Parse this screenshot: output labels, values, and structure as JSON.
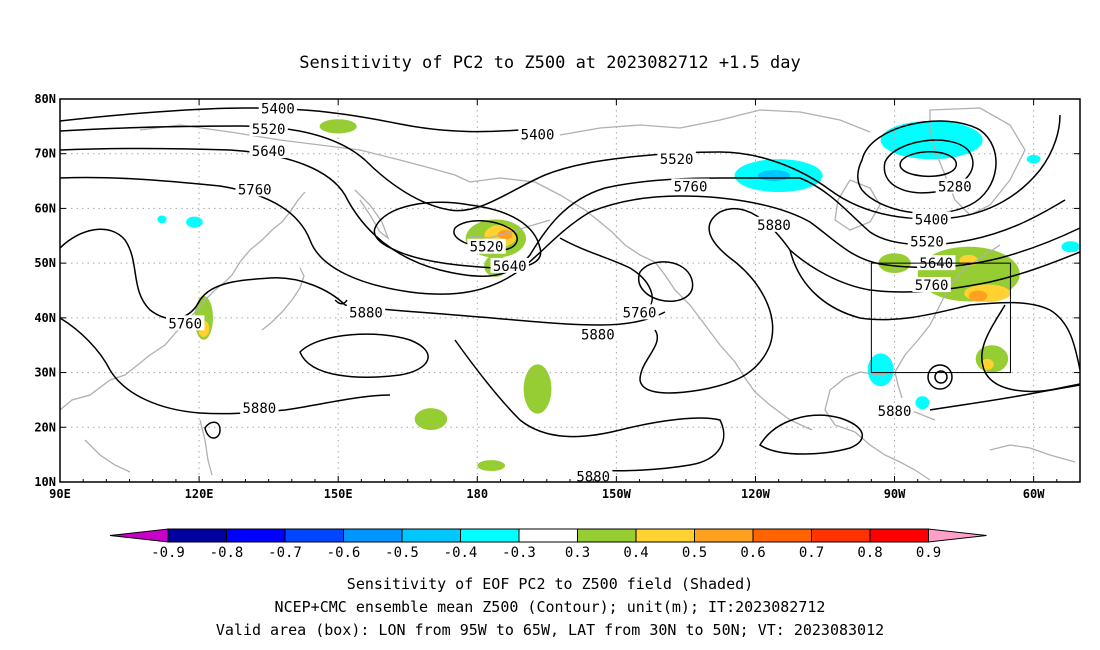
{
  "chart_data": {
    "type": "heatmap",
    "title": "Sensitivity of PC2 to Z500 at 2023082712 +1.5 day",
    "map": {
      "lon_range": [
        90,
        310
      ],
      "lat_range": [
        10,
        80
      ],
      "x_ticks": [
        {
          "lon": 90,
          "label": "90E"
        },
        {
          "lon": 120,
          "label": "120E"
        },
        {
          "lon": 150,
          "label": "150E"
        },
        {
          "lon": 180,
          "label": "180"
        },
        {
          "lon": 210,
          "label": "150W"
        },
        {
          "lon": 240,
          "label": "120W"
        },
        {
          "lon": 270,
          "label": "90W"
        },
        {
          "lon": 300,
          "label": "60W"
        }
      ],
      "y_ticks": [
        {
          "lat": 10,
          "label": "10N"
        },
        {
          "lat": 20,
          "label": "20N"
        },
        {
          "lat": 30,
          "label": "30N"
        },
        {
          "lat": 40,
          "label": "40N"
        },
        {
          "lat": 50,
          "label": "50N"
        },
        {
          "lat": 60,
          "label": "60N"
        },
        {
          "lat": 70,
          "label": "70N"
        },
        {
          "lat": 80,
          "label": "80N"
        }
      ],
      "gridlines": "dotted",
      "valid_box": {
        "lon": [
          265,
          295
        ],
        "lat": [
          30,
          50
        ]
      }
    },
    "contours": {
      "unit": "m",
      "labels": [
        {
          "value": "5400",
          "lon": 137,
          "lat": 78.3
        },
        {
          "value": "5520",
          "lon": 135,
          "lat": 74.5
        },
        {
          "value": "5640",
          "lon": 135,
          "lat": 70.5
        },
        {
          "value": "5760",
          "lon": 132,
          "lat": 63.5
        },
        {
          "value": "5760",
          "lon": 117,
          "lat": 39.0
        },
        {
          "value": "5880",
          "lon": 133,
          "lat": 23.5
        },
        {
          "value": "5880",
          "lon": 156,
          "lat": 41.0
        },
        {
          "value": "5400",
          "lon": 193,
          "lat": 73.5
        },
        {
          "value": "5520",
          "lon": 182,
          "lat": 53.0
        },
        {
          "value": "5640",
          "lon": 187,
          "lat": 49.5
        },
        {
          "value": "5520",
          "lon": 223,
          "lat": 69.0
        },
        {
          "value": "5760",
          "lon": 226,
          "lat": 64.0
        },
        {
          "value": "5880",
          "lon": 244,
          "lat": 57.0
        },
        {
          "value": "5760",
          "lon": 215,
          "lat": 41.0
        },
        {
          "value": "5880",
          "lon": 206,
          "lat": 37.0
        },
        {
          "value": "5880",
          "lon": 205,
          "lat": 11.0
        },
        {
          "value": "5280",
          "lon": 283,
          "lat": 64.0
        },
        {
          "value": "5400",
          "lon": 278,
          "lat": 58.0
        },
        {
          "value": "5520",
          "lon": 277,
          "lat": 54.0
        },
        {
          "value": "5640",
          "lon": 279,
          "lat": 50.0
        },
        {
          "value": "5760",
          "lon": 278,
          "lat": 46.0
        },
        {
          "value": "5880",
          "lon": 270,
          "lat": 23.0
        }
      ]
    },
    "shaded_regions": [
      {
        "level": 0.3,
        "lon": 150,
        "lat": 75.0,
        "rx": 4.0,
        "ry": 1.3
      },
      {
        "level": 0.3,
        "lon": 184,
        "lat": 54.5,
        "rx": 6.5,
        "ry": 3.5
      },
      {
        "level": 0.4,
        "lon": 185,
        "lat": 55.0,
        "rx": 3.5,
        "ry": 2.0
      },
      {
        "level": 0.5,
        "lon": 186,
        "lat": 55.2,
        "rx": 1.6,
        "ry": 0.9
      },
      {
        "level": 0.3,
        "lon": 184,
        "lat": 49.5,
        "rx": 2.5,
        "ry": 2.0
      },
      {
        "level": 0.3,
        "lon": 121,
        "lat": 40.0,
        "rx": 2.0,
        "ry": 4.0
      },
      {
        "level": 0.4,
        "lon": 121,
        "lat": 38.0,
        "rx": 1.2,
        "ry": 1.5
      },
      {
        "level": 0.3,
        "lon": 170,
        "lat": 21.5,
        "rx": 3.5,
        "ry": 2.0
      },
      {
        "level": 0.3,
        "lon": 193,
        "lat": 27.0,
        "rx": 3.0,
        "ry": 4.5
      },
      {
        "level": 0.3,
        "lon": 183,
        "lat": 13.0,
        "rx": 3.0,
        "ry": 1.0
      },
      {
        "level": -0.4,
        "lon": 278,
        "lat": 72.5,
        "rx": 11.0,
        "ry": 3.5
      },
      {
        "level": -0.4,
        "lon": 245,
        "lat": 66.0,
        "rx": 9.5,
        "ry": 3.0
      },
      {
        "level": -0.5,
        "lon": 244,
        "lat": 66.0,
        "rx": 3.5,
        "ry": 1.0
      },
      {
        "level": -0.4,
        "lon": 308,
        "lat": 53.0,
        "rx": 2.0,
        "ry": 1.0
      },
      {
        "level": -0.4,
        "lon": 300,
        "lat": 69.0,
        "rx": 1.5,
        "ry": 0.8
      },
      {
        "level": -0.4,
        "lon": 112,
        "lat": 58.0,
        "rx": 1.0,
        "ry": 0.7
      },
      {
        "level": -0.4,
        "lon": 119,
        "lat": 57.5,
        "rx": 1.8,
        "ry": 1.0
      },
      {
        "level": -0.4,
        "lon": 267,
        "lat": 30.5,
        "rx": 2.8,
        "ry": 3.0
      },
      {
        "level": -0.4,
        "lon": 276,
        "lat": 24.5,
        "rx": 1.5,
        "ry": 1.2
      },
      {
        "level": 0.3,
        "lon": 270,
        "lat": 50.0,
        "rx": 3.5,
        "ry": 1.8
      },
      {
        "level": 0.3,
        "lon": 286,
        "lat": 48.0,
        "rx": 11.0,
        "ry": 5.0
      },
      {
        "level": 0.4,
        "lon": 290,
        "lat": 44.5,
        "rx": 5.0,
        "ry": 1.6
      },
      {
        "level": 0.5,
        "lon": 288,
        "lat": 44.0,
        "rx": 2.0,
        "ry": 1.0
      },
      {
        "level": 0.4,
        "lon": 286,
        "lat": 50.5,
        "rx": 2.0,
        "ry": 1.0
      },
      {
        "level": 0.3,
        "lon": 291,
        "lat": 32.5,
        "rx": 3.5,
        "ry": 2.5
      },
      {
        "level": 0.4,
        "lon": 290,
        "lat": 31.5,
        "rx": 1.4,
        "ry": 1.0
      }
    ],
    "colorbar": {
      "colors": [
        "#c800c8",
        "#0000a0",
        "#0000ff",
        "#0046ff",
        "#0096ff",
        "#00c8ff",
        "#00ffff",
        "#ffffff",
        "#96cd32",
        "#ffd232",
        "#ffa01e",
        "#ff6400",
        "#ff3200",
        "#ff0000",
        "#ffa0c8"
      ],
      "labels": [
        "-0.9",
        "-0.8",
        "-0.7",
        "-0.6",
        "-0.5",
        "-0.4",
        "-0.3",
        "0.3",
        "0.4",
        "0.5",
        "0.6",
        "0.7",
        "0.8",
        "0.9"
      ]
    },
    "footer": [
      "Sensitivity of EOF PC2 to Z500 field (Shaded)",
      "NCEP+CMC ensemble mean Z500 (Contour); unit(m); IT:2023082712",
      "Valid area (box): LON from 95W to 65W, LAT from 30N to 50N; VT: 2023083012"
    ]
  }
}
